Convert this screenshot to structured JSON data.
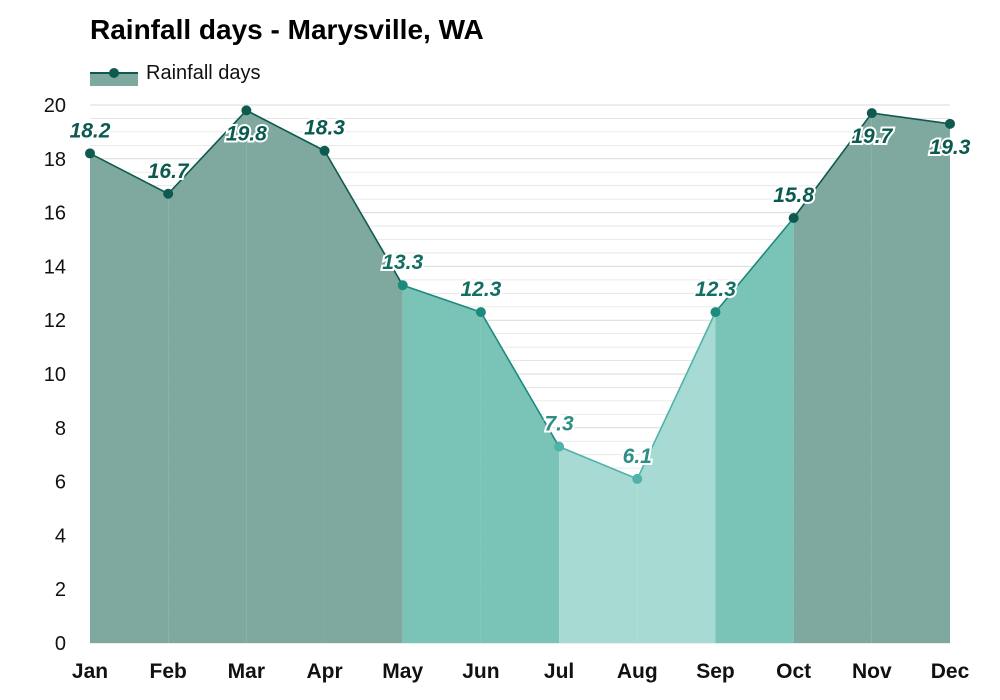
{
  "chart_data": {
    "type": "area",
    "title": "Rainfall days - Marysville, WA",
    "legend": "Rainfall days",
    "legend_placement": "top-left",
    "grid": true,
    "categories": [
      "Jan",
      "Feb",
      "Mar",
      "Apr",
      "May",
      "Jun",
      "Jul",
      "Aug",
      "Sep",
      "Oct",
      "Nov",
      "Dec"
    ],
    "series": [
      {
        "name": "Rainfall days",
        "values": [
          18.2,
          16.7,
          19.8,
          18.3,
          13.3,
          12.3,
          7.3,
          6.1,
          12.3,
          15.8,
          19.7,
          19.3
        ]
      }
    ],
    "ylim": [
      0,
      20
    ],
    "yticks": [
      "0",
      "2",
      "4",
      "6",
      "8",
      "10",
      "12",
      "14",
      "16",
      "18",
      "20"
    ],
    "value_labels": [
      "18.2",
      "16.7",
      "19.8",
      "18.3",
      "13.3",
      "12.3",
      "7.3",
      "6.1",
      "12.3",
      "15.8",
      "19.7",
      "19.3"
    ],
    "colors": {
      "high_fill": "#7fa89f",
      "high_point": "#0f5a4f",
      "mid_fill": "#7ac3b7",
      "mid_point": "#1c8a7c",
      "low_fill": "#a6dad2",
      "low_point": "#4fb4a7",
      "label_high": "#0b5a4f",
      "label_mid": "#136e63",
      "label_low": "#2b8f83",
      "grid": "#e3e3e3"
    }
  }
}
